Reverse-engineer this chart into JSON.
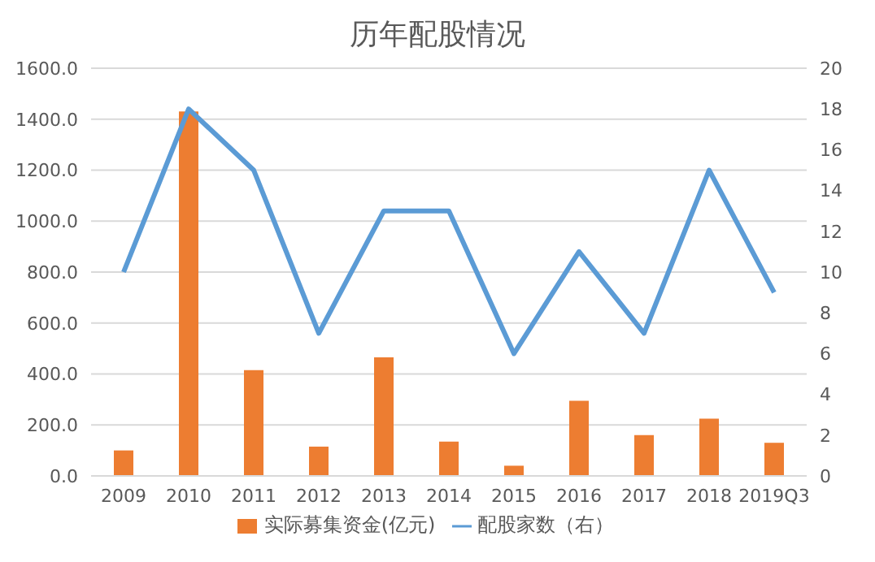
{
  "chart_data": {
    "type": "bar",
    "title": "历年配股情况",
    "categories": [
      "2009",
      "2010",
      "2011",
      "2012",
      "2013",
      "2014",
      "2015",
      "2016",
      "2017",
      "2018",
      "2019Q3"
    ],
    "series": [
      {
        "name": "实际募集资金(亿元)",
        "color": "#ed7d31",
        "values": [
          100,
          1430,
          415,
          115,
          465,
          135,
          40,
          295,
          160,
          225,
          130
        ]
      },
      {
        "name": "配股家数（右）",
        "type": "line",
        "axis": "y2",
        "color": "#5b9bd5",
        "values": [
          10,
          18,
          15,
          7,
          13,
          13,
          6,
          11,
          7,
          15,
          9
        ]
      }
    ],
    "ylim": [
      0,
      1600
    ],
    "yticks": [
      {
        "value": 0,
        "label": "0.0"
      },
      {
        "value": 200,
        "label": "200.0"
      },
      {
        "value": 400,
        "label": "400.0"
      },
      {
        "value": 600,
        "label": "600.0"
      },
      {
        "value": 800,
        "label": "800.0"
      },
      {
        "value": 1000,
        "label": "1000.0"
      },
      {
        "value": 1200,
        "label": "1200.0"
      },
      {
        "value": 1400,
        "label": "1400.0"
      },
      {
        "value": 1600,
        "label": "1600.0"
      }
    ],
    "y2lim": [
      0,
      20
    ],
    "y2ticks": [
      0,
      2,
      4,
      6,
      8,
      10,
      12,
      14,
      16,
      18,
      20
    ],
    "grid": "y",
    "legend": "bottom",
    "marker": "none"
  }
}
